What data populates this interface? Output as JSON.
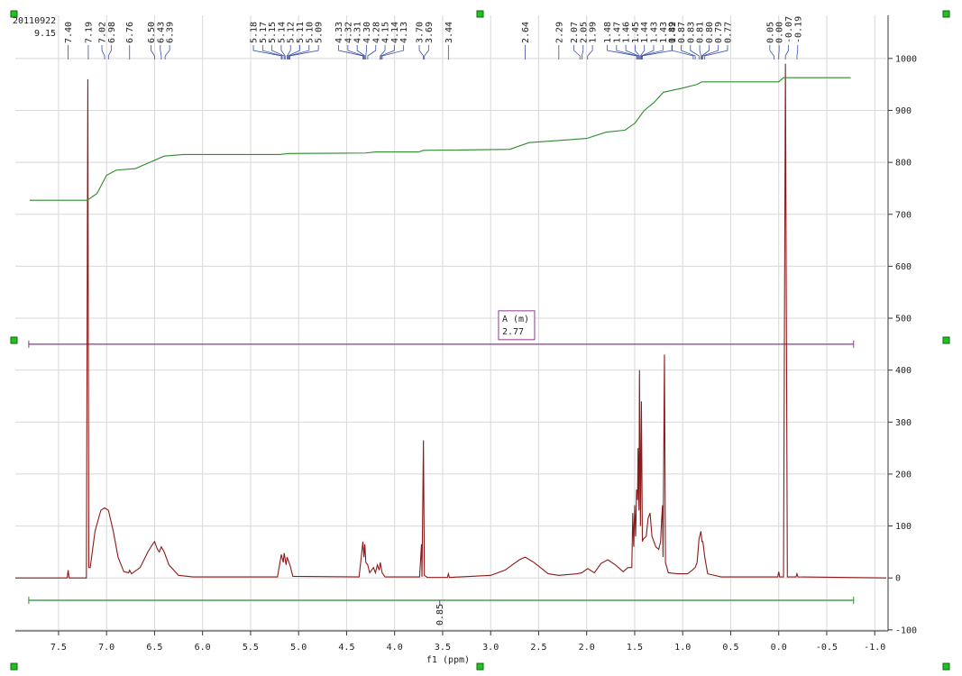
{
  "chart_data": {
    "type": "line",
    "header_texts": [
      "20110922",
      "9.15"
    ],
    "xlabel": "f1 (ppm)",
    "xlim": [
      7.95,
      -1.12
    ],
    "xticks": [
      7.5,
      {
        "value": 7,
        "label": "7.0"
      },
      6.5,
      {
        "value": 6,
        "label": "6.0"
      },
      5.5,
      {
        "value": 5,
        "label": "5.0"
      },
      4.5,
      {
        "value": 4,
        "label": "4.0"
      },
      3.5,
      {
        "value": 3,
        "label": "3.0"
      },
      2.5,
      {
        "value": 2,
        "label": "2.0"
      },
      1.5,
      {
        "value": 1,
        "label": "1.0"
      },
      0.5,
      {
        "value": 0,
        "label": "0.0"
      },
      -0.5,
      {
        "value": -1,
        "label": "-1.0"
      }
    ],
    "ylim": [
      -102,
      1083
    ],
    "yticks": [
      -100,
      0,
      100,
      200,
      300,
      400,
      500,
      600,
      700,
      800,
      900,
      1000
    ],
    "grid": true,
    "series": [
      {
        "name": "spectrum",
        "color": "#8b1a1a",
        "x": [
          7.95,
          7.41,
          7.4,
          7.39,
          7.21,
          7.195,
          7.185,
          7.17,
          7.12,
          7.06,
          7.02,
          6.98,
          6.93,
          6.88,
          6.82,
          6.77,
          6.76,
          6.74,
          6.65,
          6.57,
          6.52,
          6.5,
          6.47,
          6.45,
          6.43,
          6.4,
          6.35,
          6.25,
          6.1,
          5.22,
          5.18,
          5.16,
          5.15,
          5.13,
          5.12,
          5.1,
          5.09,
          5.06,
          4.37,
          4.33,
          4.32,
          4.31,
          4.3,
          4.28,
          4.26,
          4.22,
          4.2,
          4.18,
          4.16,
          4.15,
          4.13,
          4.1,
          3.74,
          3.72,
          3.715,
          3.7,
          3.69,
          3.66,
          3.45,
          3.44,
          3.43,
          3.0,
          2.85,
          2.7,
          2.64,
          2.55,
          2.4,
          2.29,
          2.1,
          2.05,
          1.99,
          1.92,
          1.85,
          1.78,
          1.7,
          1.62,
          1.57,
          1.53,
          1.52,
          1.51,
          1.5,
          1.49,
          1.48,
          1.47,
          1.465,
          1.455,
          1.45,
          1.44,
          1.43,
          1.42,
          1.41,
          1.38,
          1.36,
          1.34,
          1.32,
          1.28,
          1.25,
          1.23,
          1.22,
          1.21,
          1.205,
          1.19,
          1.18,
          1.15,
          1.05,
          0.95,
          0.9,
          0.87,
          0.85,
          0.83,
          0.81,
          0.8,
          0.79,
          0.77,
          0.74,
          0.6,
          0.01,
          0.0,
          -0.01,
          -0.05,
          -0.07,
          -0.09,
          -0.18,
          -0.19,
          -0.2,
          -1.12
        ],
        "values": [
          0,
          0,
          15,
          0,
          0,
          960,
          20,
          20,
          90,
          130,
          135,
          130,
          90,
          40,
          12,
          10,
          15,
          8,
          20,
          50,
          65,
          70,
          55,
          50,
          60,
          50,
          25,
          5,
          2,
          2,
          45,
          30,
          48,
          25,
          40,
          30,
          25,
          3,
          2,
          70,
          40,
          65,
          30,
          25,
          10,
          20,
          10,
          25,
          15,
          30,
          10,
          2,
          2,
          65,
          2,
          265,
          5,
          1,
          1,
          8,
          1,
          5,
          15,
          35,
          40,
          30,
          8,
          5,
          8,
          10,
          18,
          10,
          28,
          35,
          25,
          12,
          20,
          20,
          125,
          60,
          140,
          80,
          170,
          150,
          250,
          130,
          400,
          100,
          340,
          70,
          75,
          80,
          115,
          125,
          80,
          60,
          55,
          70,
          110,
          140,
          40,
          430,
          30,
          10,
          8,
          8,
          15,
          20,
          30,
          75,
          90,
          70,
          70,
          40,
          8,
          2,
          2,
          12,
          2,
          2,
          990,
          2,
          2,
          8,
          2,
          0
        ]
      },
      {
        "name": "integral",
        "color": "#2e8b2e",
        "x": [
          7.8,
          7.2,
          7.1,
          7.0,
          6.9,
          6.7,
          6.55,
          6.4,
          6.2,
          5.2,
          5.1,
          4.3,
          4.2,
          3.75,
          3.7,
          2.8,
          2.6,
          2.3,
          2.0,
          1.8,
          1.6,
          1.5,
          1.4,
          1.3,
          1.2,
          1.0,
          0.85,
          0.8,
          0.0,
          -0.05,
          -0.75
        ],
        "values": [
          727,
          727,
          740,
          775,
          785,
          788,
          800,
          812,
          815,
          815,
          817,
          818,
          820,
          820,
          823,
          825,
          838,
          842,
          846,
          858,
          862,
          875,
          900,
          915,
          935,
          943,
          950,
          955,
          955,
          963,
          963
        ]
      }
    ],
    "peaks": [
      {
        "value": 7.4,
        "label": "7.40"
      },
      {
        "value": 7.19,
        "label": "7.19"
      },
      {
        "value": 7.02,
        "label": "7.02"
      },
      {
        "value": 6.98,
        "label": "6.98"
      },
      {
        "value": 6.76,
        "label": "6.76"
      },
      {
        "value": 6.5,
        "label": "6.50"
      },
      {
        "value": 6.43,
        "label": "6.43"
      },
      {
        "value": 6.39,
        "label": "6.39"
      },
      {
        "value": 5.18,
        "label": "5.18"
      },
      {
        "value": 5.17,
        "label": "5.17"
      },
      {
        "value": 5.15,
        "label": "5.15"
      },
      {
        "value": 5.14,
        "label": "5.14"
      },
      {
        "value": 5.12,
        "label": "5.12"
      },
      {
        "value": 5.11,
        "label": "5.11"
      },
      {
        "value": 5.1,
        "label": "5.10"
      },
      {
        "value": 5.09,
        "label": "5.09"
      },
      {
        "value": 4.33,
        "label": "4.33"
      },
      {
        "value": 4.32,
        "label": "4.32"
      },
      {
        "value": 4.31,
        "label": "4.31"
      },
      {
        "value": 4.3,
        "label": "4.30"
      },
      {
        "value": 4.28,
        "label": "4.28"
      },
      {
        "value": 4.15,
        "label": "4.15"
      },
      {
        "value": 4.14,
        "label": "4.14"
      },
      {
        "value": 4.13,
        "label": "4.13"
      },
      {
        "value": 3.7,
        "label": "3.70"
      },
      {
        "value": 3.69,
        "label": "3.69"
      },
      {
        "value": 3.44,
        "label": "3.44"
      },
      {
        "value": 2.64,
        "label": "2.64"
      },
      {
        "value": 2.29,
        "label": "2.29"
      },
      {
        "value": 2.07,
        "label": "2.07"
      },
      {
        "value": 2.05,
        "label": "2.05"
      },
      {
        "value": 1.99,
        "label": "1.99"
      },
      {
        "value": 1.48,
        "label": "1.48"
      },
      {
        "value": 1.47,
        "label": "1.47"
      },
      {
        "value": 1.46,
        "label": "1.46"
      },
      {
        "value": 1.45,
        "label": "1.45"
      },
      {
        "value": 1.44,
        "label": "1.44"
      },
      {
        "value": 1.43,
        "label": "1.43"
      },
      {
        "value": 1.43,
        "label": "1.43"
      },
      {
        "value": 1.42,
        "label": "1.42"
      },
      {
        "value": 0.89,
        "label": "0.89"
      },
      {
        "value": 0.87,
        "label": "0.87"
      },
      {
        "value": 0.83,
        "label": "0.83"
      },
      {
        "value": 0.81,
        "label": "0.81"
      },
      {
        "value": 0.8,
        "label": "0.80"
      },
      {
        "value": 0.79,
        "label": "0.79"
      },
      {
        "value": 0.77,
        "label": "0.77"
      },
      {
        "value": 0.05,
        "label": "0.05"
      },
      {
        "value": 0.0,
        "label": "0.00"
      },
      {
        "value": -0.07,
        "label": "-0.07"
      },
      {
        "value": -0.19,
        "label": "-0.19"
      }
    ],
    "annotations": [
      {
        "type": "range",
        "color": "#8b3a8b",
        "y": 450,
        "x": [
          7.81,
          -0.78
        ],
        "text": [
          "A (m)",
          "2.77"
        ],
        "text_x": 2.73
      },
      {
        "type": "range",
        "color": "#2e8b2e",
        "y": -43,
        "x": [
          7.81,
          -0.78
        ],
        "text": [
          "0.85"
        ],
        "text_x": 3.53
      }
    ]
  }
}
